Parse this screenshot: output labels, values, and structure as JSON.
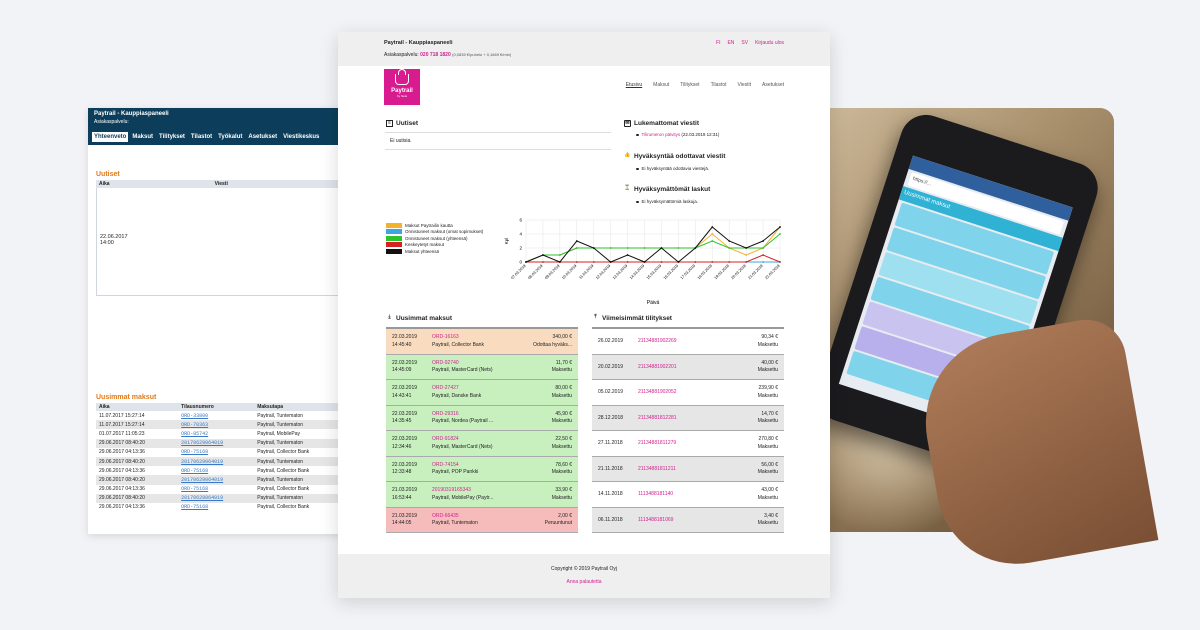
{
  "old_panel": {
    "title": "Paytrail - Kauppiaspaneeli",
    "subtitle": "Asiakaspalvelu:",
    "tabs": [
      "Yhteenveto",
      "Maksut",
      "Tilitykset",
      "Tilastot",
      "Työkalut",
      "Asetukset",
      "Viestikeskus"
    ],
    "news": {
      "heading": "Uutiset",
      "columns": [
        "Aika",
        "Viesti"
      ],
      "date": "22.06.2017",
      "time": "14:00"
    },
    "payments": {
      "heading": "Uusimmat maksut",
      "columns": [
        "Aika",
        "Tilausnumero",
        "Maksutapa"
      ],
      "rows": [
        {
          "time": "11.07.2017 15:27:14",
          "order": "ORD-33800",
          "method": "Paytrail, Tuntematon"
        },
        {
          "time": "11.07.2017 15:27:14",
          "order": "ORD-70363",
          "method": "Paytrail, Tuntematon"
        },
        {
          "time": "01.07.2017 11:05:23",
          "order": "ORD-85742",
          "method": "Paytrail, MobilePay"
        },
        {
          "time": "29.06.2017 08:40:20",
          "order": "20170629064019",
          "method": "Paytrail, Tuntematon"
        },
        {
          "time": "29.06.2017 04:13:36",
          "order": "ORD-75168",
          "method": "Paytrail, Collector Bank"
        },
        {
          "time": "29.06.2017 08:40:20",
          "order": "20170629064019",
          "method": "Paytrail, Tuntematon"
        },
        {
          "time": "29.06.2017 04:13:36",
          "order": "ORD-75168",
          "method": "Paytrail, Collector Bank"
        },
        {
          "time": "29.06.2017 08:40:20",
          "order": "20170629064019",
          "method": "Paytrail, Tuntematon"
        },
        {
          "time": "29.06.2017 04:13:36",
          "order": "ORD-75168",
          "method": "Paytrail, Collector Bank"
        },
        {
          "time": "29.06.2017 08:40:20",
          "order": "20170629064019",
          "method": "Paytrail, Tuntematon"
        },
        {
          "time": "29.06.2017 04:13:36",
          "order": "ORD-75168",
          "method": "Paytrail, Collector Bank"
        }
      ]
    }
  },
  "main": {
    "top": {
      "title": "Paytrail - Kauppiaspaneeli",
      "service_label": "Asiakaspalvelu:",
      "phone": "020 718 1820",
      "phone_note": "(0,0835 €/puhelu + 0,1669 €/min)",
      "lang": [
        "FI",
        "EN",
        "SV"
      ],
      "logout": "Kirjaudu ulos"
    },
    "logo": {
      "name": "Paytrail",
      "by": "by Nets"
    },
    "nav": [
      "Etusivu",
      "Maksut",
      "Tilitykset",
      "Tilastot",
      "Viestit",
      "Asetukset"
    ],
    "news": {
      "heading": "Uutiset",
      "empty": "Ei uutisia."
    },
    "unread": {
      "heading": "Lukemattomat viestit",
      "link": "Tilirumeron päivitys",
      "date": "(22.03.2019 12:31)"
    },
    "pending": {
      "heading": "Hyväksyntää odottavat viestit",
      "text": "Ei hyväksyntää odottavia viestejä."
    },
    "unapproved": {
      "heading": "Hyväksymättömät laskut",
      "text": "Ei hyväksymättömiä laskuja."
    },
    "payments": {
      "heading": "Uusimmat maksut",
      "rows": [
        {
          "date": "22.03.2019",
          "time": "14:45:40",
          "order": "ORD-16163",
          "method": "Paytrail, Collector Bank",
          "amount": "340,00 €",
          "status": "Odottaa hyväks...",
          "tone": "o"
        },
        {
          "date": "22.03.2019",
          "time": "14:45:09",
          "order": "ORD-92740",
          "method": "Paytrail, MasterCard (Nets)",
          "amount": "11,70 €",
          "status": "Maksettu",
          "tone": "g"
        },
        {
          "date": "22.03.2019",
          "time": "14:43:41",
          "order": "ORD-27427",
          "method": "Paytrail, Danske Bank",
          "amount": "80,00 €",
          "status": "Maksettu",
          "tone": "g"
        },
        {
          "date": "22.03.2019",
          "time": "14:35:45",
          "order": "ORD-29316",
          "method": "Paytrail, Nordea (Paytrail ...",
          "amount": "45,90 €",
          "status": "Maksettu",
          "tone": "g"
        },
        {
          "date": "22.03.2019",
          "time": "12:34:46",
          "order": "ORD-91824",
          "method": "Paytrail, MasterCard (Nets)",
          "amount": "22,50 €",
          "status": "Maksettu",
          "tone": "g"
        },
        {
          "date": "22.03.2019",
          "time": "12:33:48",
          "order": "ORD-74154",
          "method": "Paytrail, POP Pankki",
          "amount": "78,60 €",
          "status": "Maksettu",
          "tone": "g"
        },
        {
          "date": "21.03.2019",
          "time": "16:53:44",
          "order": "20190319165343",
          "method": "Paytrail, MobilePay (Paytr...",
          "amount": "33,90 €",
          "status": "Maksettu",
          "tone": "g"
        },
        {
          "date": "21.03.2019",
          "time": "14:44:05",
          "order": "ORD-66435",
          "method": "Paytrail, Tuntematon",
          "amount": "2,00 €",
          "status": "Peruuntunut",
          "tone": "r"
        }
      ]
    },
    "settlements": {
      "heading": "Viimeisimmät tilitykset",
      "rows": [
        {
          "date": "26.02.2019",
          "id": "21134881902269",
          "amount": "90,34 €",
          "status": "Maksettu"
        },
        {
          "date": "20.02.2019",
          "id": "21134881902201",
          "amount": "40,00 €",
          "status": "Maksettu"
        },
        {
          "date": "05.02.2019",
          "id": "21134881902052",
          "amount": "239,90 €",
          "status": "Maksettu"
        },
        {
          "date": "28.12.2018",
          "id": "21134881812281",
          "amount": "14,70 €",
          "status": "Maksettu"
        },
        {
          "date": "27.11.2018",
          "id": "21134881811279",
          "amount": "270,80 €",
          "status": "Maksettu"
        },
        {
          "date": "21.11.2018",
          "id": "21134881811211",
          "amount": "56,00 €",
          "status": "Maksettu"
        },
        {
          "date": "14.11.2018",
          "id": "1113488181140",
          "amount": "43,00 €",
          "status": "Maksettu"
        },
        {
          "date": "06.11.2018",
          "id": "1113488181069",
          "amount": "3,40 €",
          "status": "Maksettu"
        }
      ]
    },
    "footer": {
      "copyright": "Copyright © 2019 Paytrail Oyj",
      "feedback": "Anna palautetta"
    }
  },
  "phone_screen": {
    "url": "https://...",
    "header": "Uusimmat maksut"
  },
  "chart_data": {
    "type": "line",
    "ylabel": "Kpl",
    "xlabel": "Päivä",
    "ylim": [
      0,
      6
    ],
    "yticks": [
      0,
      2,
      4,
      6
    ],
    "x": [
      "07.03.2019",
      "08.03.2019",
      "09.03.2019",
      "10.03.2019",
      "11.03.2019",
      "12.03.2019",
      "13.03.2019",
      "14.03.2019",
      "15.03.2019",
      "16.03.2019",
      "17.03.2019",
      "18.03.2019",
      "19.03.2019",
      "20.03.2019",
      "21.03.2019",
      "22.03.2019"
    ],
    "series": [
      {
        "name": "Maksut Paytrailin kautta",
        "color": "#f3b22c",
        "values": [
          0,
          1,
          1,
          2,
          2,
          2,
          2,
          2,
          2,
          2,
          2,
          4,
          2,
          1,
          2,
          5
        ]
      },
      {
        "name": "Onnistuneet maksut (omat sopimukset)",
        "color": "#3da5e0",
        "values": [
          0,
          0,
          0,
          0,
          0,
          0,
          0,
          0,
          0,
          0,
          0,
          0,
          0,
          0,
          0,
          0
        ]
      },
      {
        "name": "Onnistuneet maksut (yhteensä)",
        "color": "#2ec22e",
        "values": [
          0,
          1,
          1,
          2,
          2,
          2,
          2,
          2,
          2,
          2,
          2,
          3,
          2,
          2,
          2,
          4
        ]
      },
      {
        "name": "Keskeytetyt maksut",
        "color": "#d42222",
        "values": [
          0,
          0,
          0,
          0,
          0,
          0,
          0,
          0,
          0,
          0,
          0,
          0,
          0,
          0,
          1,
          0
        ]
      },
      {
        "name": "Maksut yhteensä",
        "color": "#111111",
        "values": [
          0,
          1,
          0,
          3,
          2,
          0,
          1,
          0,
          2,
          0,
          2,
          5,
          3,
          2,
          3,
          5
        ]
      }
    ],
    "legend": "left"
  }
}
